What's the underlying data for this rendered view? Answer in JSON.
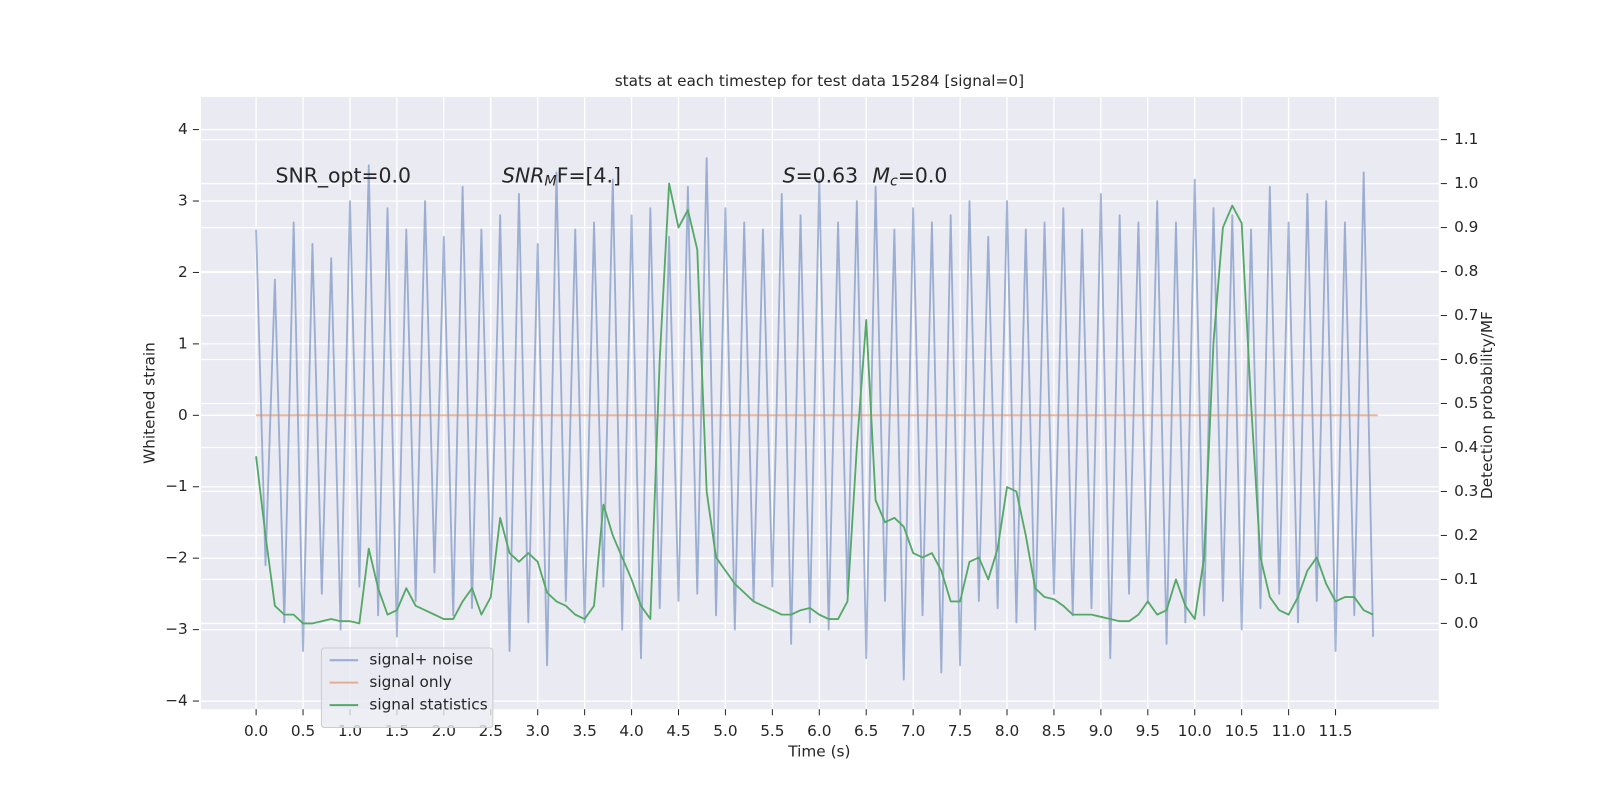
{
  "chart_data": {
    "type": "line",
    "title": "stats at each timestep for test data 15284 [signal=0]",
    "xlabel": "Time (s)",
    "ylabel": "Whitened strain",
    "y2label": "Detection probability/MF",
    "annotations": [
      "SNR_opt=0.0",
      [
        "SNR",
        "M",
        "F=[4.]"
      ],
      [
        "S",
        "=0.63",
        "M",
        "c",
        "=0.0"
      ]
    ],
    "xlim": [
      -0.587,
      12.6
    ],
    "ylim": [
      -4.114,
      4.457
    ],
    "y2lim": [
      -0.195,
      1.197
    ],
    "xticks": [
      {
        "value": 0,
        "label": "0.0"
      },
      0.5,
      {
        "value": 1,
        "label": "1.0"
      },
      1.5,
      {
        "value": 2,
        "label": "2.0"
      },
      2.5,
      {
        "value": 3,
        "label": "3.0"
      },
      3.5,
      {
        "value": 4,
        "label": "4.0"
      },
      4.5,
      {
        "value": 5,
        "label": "5.0"
      },
      5.5,
      {
        "value": 6,
        "label": "6.0"
      },
      6.5,
      {
        "value": 7,
        "label": "7.0"
      },
      7.5,
      {
        "value": 8,
        "label": "8.0"
      },
      8.5,
      {
        "value": 9,
        "label": "9.0"
      },
      9.5,
      {
        "value": 10,
        "label": "10.0"
      },
      10.5,
      {
        "value": 11,
        "label": "11.0"
      },
      11.5
    ],
    "yticks": [
      {
        "value": -4,
        "label": "−4"
      },
      {
        "value": -3,
        "label": "−3"
      },
      {
        "value": -2,
        "label": "−2"
      },
      {
        "value": -1,
        "label": "−1"
      },
      0,
      1,
      2,
      3,
      4
    ],
    "y2ticks": [
      {
        "value": 0,
        "label": "0.0"
      },
      0.1,
      0.2,
      0.3,
      0.4,
      0.5,
      0.6,
      0.7,
      0.8,
      0.9,
      {
        "value": 1,
        "label": "1.0"
      },
      1.1
    ],
    "grid": true,
    "legend": "lower left",
    "series": [
      {
        "name": "signal+ noise",
        "color": "#4c72b0",
        "x": [
          0,
          0.1,
          0.2,
          0.3,
          0.4,
          0.5,
          0.6,
          0.7,
          0.8,
          0.9,
          1,
          1.1,
          1.2,
          1.3,
          1.4,
          1.5,
          1.6,
          1.7,
          1.8,
          1.9,
          2,
          2.1,
          2.2,
          2.3,
          2.4,
          2.5,
          2.6,
          2.7,
          2.8,
          2.9,
          3,
          3.1,
          3.2,
          3.3,
          3.4,
          3.5,
          3.6,
          3.7,
          3.8,
          3.9,
          4,
          4.1,
          4.2,
          4.3,
          4.4,
          4.5,
          4.6,
          4.7,
          4.8,
          4.9,
          5,
          5.1,
          5.2,
          5.3,
          5.4,
          5.5,
          5.6,
          5.7,
          5.8,
          5.9,
          6,
          6.1,
          6.2,
          6.3,
          6.4,
          6.5,
          6.6,
          6.7,
          6.8,
          6.9,
          7,
          7.1,
          7.2,
          7.3,
          7.4,
          7.5,
          7.6,
          7.7,
          7.8,
          7.9,
          8,
          8.1,
          8.2,
          8.3,
          8.4,
          8.5,
          8.6,
          8.7,
          8.8,
          8.9,
          9,
          9.1,
          9.2,
          9.3,
          9.4,
          9.5,
          9.6,
          9.7,
          9.8,
          9.9,
          10,
          10.1,
          10.2,
          10.3,
          10.4,
          10.5,
          10.6,
          10.7,
          10.8,
          10.9,
          11,
          11.1,
          11.2,
          11.3,
          11.4,
          11.5,
          11.6,
          11.7,
          11.8,
          11.9
        ],
        "values": [
          2.6,
          -2.1,
          1.9,
          -2.9,
          2.7,
          -3.3,
          2.4,
          -2.5,
          2.2,
          -3.0,
          3.0,
          -2.4,
          3.5,
          -2.8,
          2.9,
          -3.1,
          2.6,
          -2.6,
          3.0,
          -2.2,
          2.5,
          -2.8,
          3.2,
          -2.7,
          2.6,
          -2.3,
          2.8,
          -3.3,
          3.1,
          -2.9,
          2.4,
          -3.5,
          3.4,
          -2.6,
          2.6,
          -2.9,
          2.7,
          -2.4,
          3.3,
          -3.0,
          2.8,
          -3.4,
          2.9,
          -2.7,
          2.5,
          -2.6,
          3.2,
          -2.5,
          3.6,
          -2.8,
          2.9,
          -3.0,
          2.7,
          -2.6,
          2.6,
          -2.4,
          3.1,
          -3.2,
          2.8,
          -2.9,
          3.3,
          -3.0,
          2.7,
          -2.5,
          3.0,
          -3.4,
          3.2,
          -2.6,
          2.6,
          -3.7,
          2.9,
          -2.8,
          2.7,
          -3.6,
          2.8,
          -3.5,
          3.0,
          -2.6,
          2.5,
          -2.7,
          3.0,
          -2.9,
          2.6,
          -3.0,
          2.7,
          -2.5,
          2.9,
          -2.8,
          2.6,
          -2.7,
          3.1,
          -3.4,
          2.8,
          -2.5,
          2.7,
          -2.6,
          3.0,
          -3.2,
          2.7,
          -2.9,
          3.3,
          -2.8,
          2.9,
          -2.6,
          2.8,
          -3.0,
          2.6,
          -2.7,
          3.2,
          -2.5,
          2.7,
          -2.9,
          3.1,
          -2.6,
          3.0,
          -3.3,
          2.7,
          -2.8,
          3.4,
          -3.1
        ]
      },
      {
        "name": "signal only",
        "color": "#dd8452",
        "x": [
          0,
          11.95
        ],
        "values": [
          0,
          0
        ]
      },
      {
        "name": "signal statistics",
        "color": "#55a868",
        "axis": "y2",
        "x": [
          0,
          0.1,
          0.2,
          0.3,
          0.4,
          0.5,
          0.6,
          0.7,
          0.8,
          0.9,
          1,
          1.1,
          1.2,
          1.3,
          1.4,
          1.5,
          1.6,
          1.7,
          1.8,
          1.9,
          2,
          2.1,
          2.2,
          2.3,
          2.4,
          2.5,
          2.6,
          2.7,
          2.8,
          2.9,
          3,
          3.1,
          3.2,
          3.3,
          3.4,
          3.5,
          3.6,
          3.7,
          3.8,
          3.9,
          4,
          4.1,
          4.2,
          4.3,
          4.4,
          4.5,
          4.6,
          4.7,
          4.8,
          4.9,
          5,
          5.1,
          5.2,
          5.3,
          5.4,
          5.5,
          5.6,
          5.7,
          5.8,
          5.9,
          6,
          6.1,
          6.2,
          6.3,
          6.4,
          6.5,
          6.6,
          6.7,
          6.8,
          6.9,
          7,
          7.1,
          7.2,
          7.3,
          7.4,
          7.5,
          7.6,
          7.7,
          7.8,
          7.9,
          8,
          8.1,
          8.2,
          8.3,
          8.4,
          8.5,
          8.6,
          8.7,
          8.8,
          8.9,
          9,
          9.1,
          9.2,
          9.3,
          9.4,
          9.5,
          9.6,
          9.7,
          9.8,
          9.9,
          10,
          10.1,
          10.2,
          10.3,
          10.4,
          10.5,
          10.6,
          10.7,
          10.8,
          10.9,
          11,
          11.1,
          11.2,
          11.3,
          11.4,
          11.5,
          11.6,
          11.7,
          11.8,
          11.9
        ],
        "values": [
          0.38,
          0.2,
          0.04,
          0.02,
          0.02,
          0.0,
          0.0,
          0.005,
          0.01,
          0.005,
          0.005,
          0.0,
          0.17,
          0.08,
          0.02,
          0.03,
          0.08,
          0.04,
          0.03,
          0.02,
          0.01,
          0.01,
          0.05,
          0.08,
          0.02,
          0.06,
          0.24,
          0.16,
          0.14,
          0.16,
          0.14,
          0.07,
          0.05,
          0.04,
          0.02,
          0.01,
          0.04,
          0.27,
          0.2,
          0.15,
          0.1,
          0.04,
          0.01,
          0.6,
          1.0,
          0.9,
          0.94,
          0.85,
          0.3,
          0.15,
          0.12,
          0.09,
          0.07,
          0.05,
          0.04,
          0.03,
          0.02,
          0.02,
          0.03,
          0.035,
          0.02,
          0.01,
          0.01,
          0.05,
          0.4,
          0.69,
          0.28,
          0.23,
          0.24,
          0.22,
          0.16,
          0.15,
          0.16,
          0.12,
          0.05,
          0.05,
          0.14,
          0.15,
          0.1,
          0.17,
          0.31,
          0.3,
          0.2,
          0.08,
          0.06,
          0.055,
          0.04,
          0.02,
          0.02,
          0.02,
          0.015,
          0.01,
          0.005,
          0.005,
          0.02,
          0.05,
          0.02,
          0.03,
          0.1,
          0.04,
          0.01,
          0.15,
          0.64,
          0.9,
          0.95,
          0.91,
          0.5,
          0.15,
          0.06,
          0.03,
          0.02,
          0.06,
          0.12,
          0.15,
          0.09,
          0.05,
          0.06,
          0.06,
          0.03,
          0.02
        ]
      }
    ]
  }
}
